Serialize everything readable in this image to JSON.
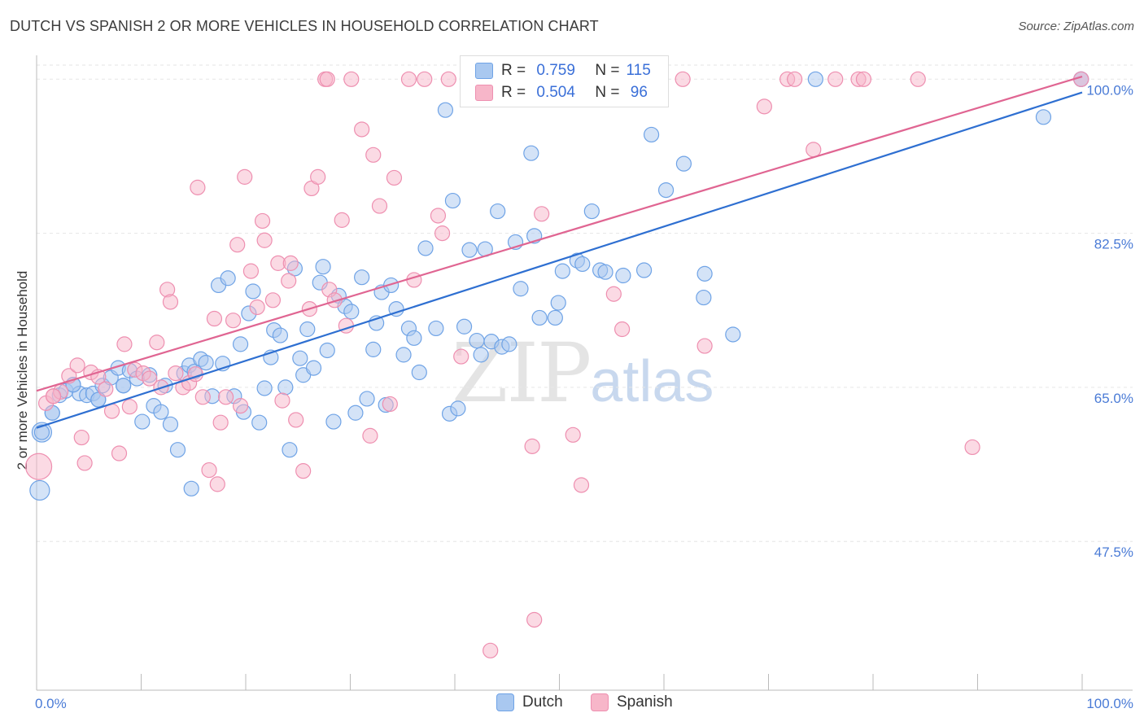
{
  "title": "DUTCH VS SPANISH 2 OR MORE VEHICLES IN HOUSEHOLD CORRELATION CHART",
  "source": "Source: ZipAtlas.com",
  "watermark": {
    "zip": "ZIP",
    "atlas": "atlas"
  },
  "legend": {
    "rows": [
      {
        "r_label": "R =",
        "r_value": "0.759",
        "n_label": "N =",
        "n_value": "115",
        "color": "#a9c8f0"
      },
      {
        "r_label": "R =",
        "r_value": "0.504",
        "n_label": "N =",
        "n_value": " 96",
        "color": "#f7b6c9"
      }
    ]
  },
  "bottom_legend": [
    {
      "label": "Dutch",
      "color": "#a9c8f0"
    },
    {
      "label": "Spanish",
      "color": "#f7b6c9"
    }
  ],
  "chart_data": {
    "type": "scatter",
    "title": "DUTCH VS SPANISH 2 OR MORE VEHICLES IN HOUSEHOLD CORRELATION CHART",
    "xlabel": "",
    "ylabel": "2 or more Vehicles in Household",
    "x_tick_labels": [
      "0.0%",
      "100.0%"
    ],
    "y_tick_labels": [
      "47.5%",
      "65.0%",
      "82.5%",
      "100.0%"
    ],
    "y_ticks": [
      47.5,
      65.0,
      82.5,
      100.0
    ],
    "xlim": [
      0,
      100
    ],
    "ylim": [
      30.6,
      101.6
    ],
    "grid": true,
    "legend_position": "top-center",
    "series": [
      {
        "name": "Dutch",
        "color": "#6fa3e6",
        "fill": "#a9c8f0",
        "trend": {
          "x0": 0,
          "y0": 60.4,
          "x1": 100,
          "y1": 98.5,
          "color": "#2e6fd1"
        },
        "points": [
          [
            0.3,
            53.3
          ],
          [
            0.5,
            59.9
          ],
          [
            1.5,
            62.1
          ],
          [
            2.2,
            64.1
          ],
          [
            2.8,
            64.6
          ],
          [
            3.5,
            65.3
          ],
          [
            4.1,
            64.3
          ],
          [
            4.8,
            64.1
          ],
          [
            5.4,
            64.3
          ],
          [
            5.9,
            63.6
          ],
          [
            6.3,
            65.2
          ],
          [
            7.1,
            66.1
          ],
          [
            7.8,
            67.2
          ],
          [
            8.3,
            65.2
          ],
          [
            8.9,
            66.9
          ],
          [
            9.6,
            66.0
          ],
          [
            10.1,
            61.1
          ],
          [
            10.8,
            66.4
          ],
          [
            11.2,
            62.9
          ],
          [
            11.9,
            62.2
          ],
          [
            12.3,
            65.2
          ],
          [
            12.8,
            60.8
          ],
          [
            13.5,
            57.9
          ],
          [
            14.1,
            66.6
          ],
          [
            14.6,
            67.5
          ],
          [
            14.8,
            53.5
          ],
          [
            15.1,
            66.8
          ],
          [
            15.7,
            68.2
          ],
          [
            16.2,
            67.8
          ],
          [
            16.8,
            64.0
          ],
          [
            17.4,
            76.6
          ],
          [
            17.8,
            67.7
          ],
          [
            18.3,
            77.4
          ],
          [
            18.9,
            64.0
          ],
          [
            19.5,
            69.9
          ],
          [
            19.8,
            62.2
          ],
          [
            20.3,
            73.4
          ],
          [
            20.7,
            75.9
          ],
          [
            21.3,
            61.0
          ],
          [
            21.8,
            64.9
          ],
          [
            22.4,
            68.4
          ],
          [
            22.7,
            71.5
          ],
          [
            23.3,
            70.9
          ],
          [
            23.8,
            65.0
          ],
          [
            24.2,
            57.9
          ],
          [
            24.7,
            78.5
          ],
          [
            25.2,
            68.3
          ],
          [
            25.5,
            66.4
          ],
          [
            25.9,
            71.6
          ],
          [
            26.5,
            67.2
          ],
          [
            27.1,
            76.9
          ],
          [
            27.4,
            78.7
          ],
          [
            27.8,
            69.2
          ],
          [
            28.4,
            61.1
          ],
          [
            28.9,
            75.4
          ],
          [
            29.5,
            74.2
          ],
          [
            30.1,
            73.6
          ],
          [
            30.5,
            62.1
          ],
          [
            31.1,
            77.5
          ],
          [
            31.6,
            63.7
          ],
          [
            32.2,
            69.3
          ],
          [
            32.5,
            72.3
          ],
          [
            33.0,
            75.8
          ],
          [
            33.4,
            63.0
          ],
          [
            33.9,
            76.6
          ],
          [
            34.4,
            73.9
          ],
          [
            35.1,
            68.7
          ],
          [
            35.6,
            71.7
          ],
          [
            36.1,
            70.6
          ],
          [
            36.6,
            66.7
          ],
          [
            37.2,
            80.8
          ],
          [
            38.2,
            71.7
          ],
          [
            39.1,
            96.5
          ],
          [
            39.5,
            62.0
          ],
          [
            39.8,
            86.2
          ],
          [
            40.3,
            62.6
          ],
          [
            40.9,
            71.9
          ],
          [
            41.4,
            80.6
          ],
          [
            42.1,
            70.3
          ],
          [
            42.5,
            68.7
          ],
          [
            42.9,
            80.7
          ],
          [
            43.5,
            70.2
          ],
          [
            44.1,
            85.0
          ],
          [
            44.5,
            69.6
          ],
          [
            45.2,
            69.9
          ],
          [
            45.8,
            81.5
          ],
          [
            46.3,
            76.2
          ],
          [
            47.3,
            91.6
          ],
          [
            47.6,
            82.2
          ],
          [
            48.1,
            72.9
          ],
          [
            49.6,
            72.9
          ],
          [
            49.9,
            74.6
          ],
          [
            50.3,
            78.2
          ],
          [
            51.7,
            79.4
          ],
          [
            52.2,
            79.0
          ],
          [
            53.1,
            85.0
          ],
          [
            53.9,
            78.3
          ],
          [
            54.4,
            78.1
          ],
          [
            56.1,
            77.7
          ],
          [
            58.1,
            78.3
          ],
          [
            58.8,
            93.7
          ],
          [
            60.2,
            87.4
          ],
          [
            61.9,
            90.4
          ],
          [
            63.9,
            77.9
          ],
          [
            63.8,
            75.2
          ],
          [
            66.6,
            71.0
          ],
          [
            74.5,
            100.0
          ],
          [
            96.3,
            95.7
          ],
          [
            99.9,
            100.0
          ],
          [
            99.9,
            100.0
          ],
          [
            0.5,
            59.9
          ],
          [
            1.5,
            62.1
          ],
          [
            3.5,
            65.3
          ],
          [
            5.9,
            63.6
          ],
          [
            8.3,
            65.2
          ]
        ]
      },
      {
        "name": "Spanish",
        "color": "#ee8fb0",
        "fill": "#f7b6c9",
        "trend": {
          "x0": 0,
          "y0": 64.6,
          "x1": 100,
          "y1": 100.3,
          "color": "#e06592"
        },
        "points": [
          [
            0.2,
            56.0
          ],
          [
            0.9,
            63.2
          ],
          [
            1.6,
            64.0
          ],
          [
            2.3,
            64.5
          ],
          [
            3.1,
            66.3
          ],
          [
            3.9,
            67.5
          ],
          [
            4.6,
            56.4
          ],
          [
            4.3,
            59.3
          ],
          [
            5.2,
            66.7
          ],
          [
            5.9,
            66.2
          ],
          [
            6.6,
            64.8
          ],
          [
            7.2,
            62.3
          ],
          [
            7.9,
            57.5
          ],
          [
            8.4,
            69.9
          ],
          [
            8.9,
            62.8
          ],
          [
            9.4,
            67.0
          ],
          [
            10.2,
            66.6
          ],
          [
            10.8,
            66.0
          ],
          [
            11.5,
            70.1
          ],
          [
            11.9,
            65.0
          ],
          [
            12.5,
            76.1
          ],
          [
            12.8,
            74.7
          ],
          [
            13.3,
            66.6
          ],
          [
            14.0,
            65.0
          ],
          [
            14.6,
            65.5
          ],
          [
            15.2,
            66.5
          ],
          [
            15.4,
            87.7
          ],
          [
            15.9,
            63.9
          ],
          [
            16.5,
            55.6
          ],
          [
            17.0,
            72.8
          ],
          [
            17.3,
            54.0
          ],
          [
            17.6,
            61.0
          ],
          [
            18.1,
            63.9
          ],
          [
            18.8,
            72.6
          ],
          [
            19.2,
            81.2
          ],
          [
            19.5,
            62.9
          ],
          [
            19.9,
            88.9
          ],
          [
            20.5,
            78.2
          ],
          [
            21.1,
            74.1
          ],
          [
            21.6,
            83.9
          ],
          [
            21.8,
            81.7
          ],
          [
            22.6,
            74.9
          ],
          [
            23.1,
            79.1
          ],
          [
            23.5,
            63.5
          ],
          [
            24.1,
            77.1
          ],
          [
            24.3,
            79.1
          ],
          [
            24.8,
            61.3
          ],
          [
            25.5,
            55.5
          ],
          [
            26.1,
            73.9
          ],
          [
            26.3,
            87.6
          ],
          [
            26.9,
            88.9
          ],
          [
            27.6,
            100.0
          ],
          [
            27.8,
            100.0
          ],
          [
            28.0,
            76.1
          ],
          [
            28.5,
            74.9
          ],
          [
            29.2,
            84.0
          ],
          [
            29.6,
            72.0
          ],
          [
            30.1,
            100.0
          ],
          [
            31.1,
            94.3
          ],
          [
            31.9,
            59.5
          ],
          [
            32.2,
            91.4
          ],
          [
            32.8,
            85.6
          ],
          [
            33.8,
            63.1
          ],
          [
            34.2,
            88.8
          ],
          [
            35.6,
            100.0
          ],
          [
            36.1,
            77.2
          ],
          [
            37.1,
            100.0
          ],
          [
            38.4,
            84.5
          ],
          [
            38.8,
            82.5
          ],
          [
            39.4,
            100.0
          ],
          [
            40.6,
            68.5
          ],
          [
            41.2,
            100.0
          ],
          [
            43.1,
            100.0
          ],
          [
            43.4,
            35.1
          ],
          [
            45.2,
            100.0
          ],
          [
            47.6,
            38.6
          ],
          [
            47.4,
            58.3
          ],
          [
            48.3,
            84.7
          ],
          [
            51.3,
            59.6
          ],
          [
            52.1,
            53.9
          ],
          [
            55.2,
            75.6
          ],
          [
            56.0,
            71.6
          ],
          [
            59.4,
            100.0
          ],
          [
            61.8,
            100.0
          ],
          [
            63.9,
            69.7
          ],
          [
            69.6,
            96.9
          ],
          [
            71.8,
            100.0
          ],
          [
            72.5,
            100.0
          ],
          [
            74.3,
            92.0
          ],
          [
            76.4,
            100.0
          ],
          [
            78.6,
            100.0
          ],
          [
            79.1,
            100.0
          ],
          [
            84.3,
            100.0
          ],
          [
            89.5,
            58.2
          ],
          [
            99.9,
            100.0
          ],
          [
            1.6,
            64.0
          ]
        ]
      }
    ]
  }
}
